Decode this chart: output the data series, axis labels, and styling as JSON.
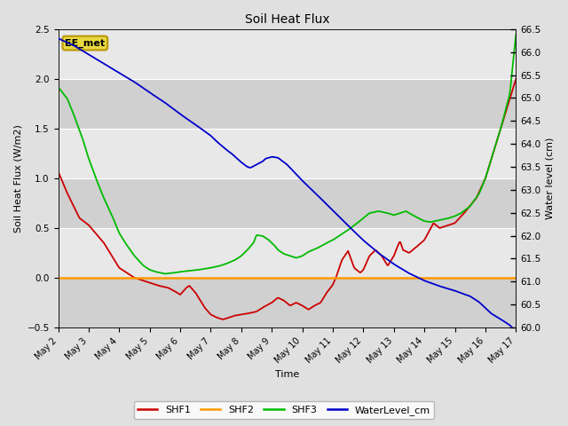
{
  "title": "Soil Heat Flux",
  "ylabel_left": "Soil Heat Flux (W/m2)",
  "ylabel_right": "Water level (cm)",
  "xlabel": "Time",
  "ylim_left": [
    -0.5,
    2.5
  ],
  "ylim_right": [
    60.0,
    66.5
  ],
  "fig_bg": "#e0e0e0",
  "plot_bg_light": "#e8e8e8",
  "plot_bg_dark": "#d0d0d0",
  "grid_color": "#ffffff",
  "annotation_text": "EE_met",
  "annotation_bg": "#e8d840",
  "annotation_border": "#b8960a",
  "shf1_color": "#cc0000",
  "shf2_color": "#ff9900",
  "shf3_color": "#00bb00",
  "wl_color": "#0000cc",
  "x_tick_labels": [
    "May 2",
    "May 3",
    "May 4",
    "May 5",
    "May 6",
    "May 7",
    "May 8",
    "May 9",
    "May 10",
    "May 11",
    "May 12",
    "May 13",
    "May 14",
    "May 15",
    "May 16",
    "May 17"
  ]
}
